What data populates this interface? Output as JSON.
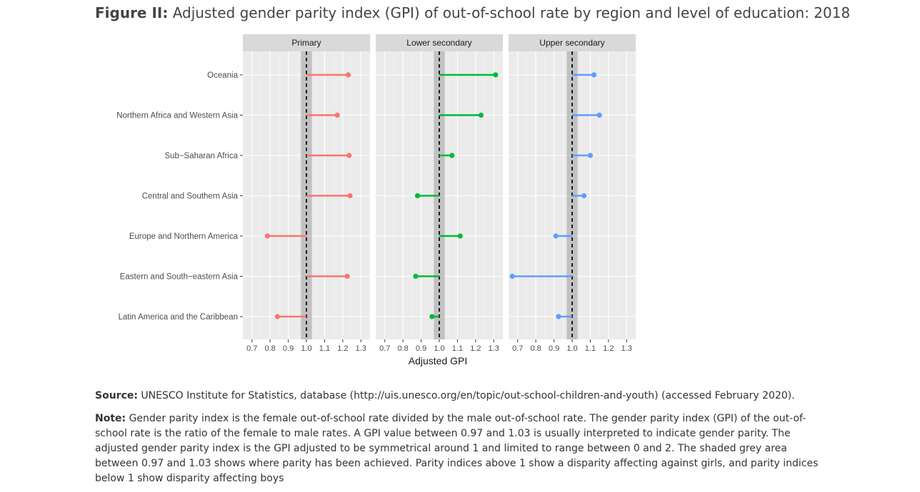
{
  "title": {
    "prefix": "Figure II:",
    "text": "Adjusted gender parity index (GPI) of out-of-school rate by region and level of education: 2018"
  },
  "source": {
    "label": "Source:",
    "text": "UNESCO Institute for Statistics, database (http://uis.unesco.org/en/topic/out-school-children-and-youth) (accessed February 2020)."
  },
  "note": {
    "label": "Note:",
    "text": "Gender parity index is the female out-of-school rate divided by the male out-of-school rate. The gender parity index (GPI) of the out-of-school rate is the ratio of the female to male rates. A GPI value between 0.97 and 1.03 is usually interpreted to indicate gender parity. The adjusted gender parity index is the GPI adjusted to be symmetrical around 1 and limited to range between 0 and 2. The shaded grey area between 0.97 and 1.03 shows where parity has been achieved. Parity indices above 1 show a disparity affecting against girls, and parity indices below 1 show disparity affecting boys"
  },
  "chart_data": {
    "type": "lollipop",
    "xlabel": "Adjusted GPI",
    "xlim": [
      0.65,
      1.35
    ],
    "xticks": [
      "0.7",
      "0.8",
      "0.9",
      "1.0",
      "1.1",
      "1.2",
      "1.3"
    ],
    "reference_line": 1.0,
    "parity_band": [
      0.97,
      1.03
    ],
    "categories": [
      "Oceania",
      "Northern Africa and Western Asia",
      "Sub−Saharan Africa",
      "Central and Southern Asia",
      "Europe and Northern America",
      "Eastern and South−eastern Asia",
      "Latin America and the Caribbean"
    ],
    "panels": [
      {
        "name": "Primary",
        "color": "#f8766d",
        "values": [
          1.23,
          1.17,
          1.235,
          1.24,
          0.785,
          1.225,
          0.84
        ]
      },
      {
        "name": "Lower secondary",
        "color": "#00ba38",
        "values": [
          1.31,
          1.23,
          1.07,
          0.88,
          1.115,
          0.87,
          0.96
        ]
      },
      {
        "name": "Upper secondary",
        "color": "#619cff",
        "values": [
          1.12,
          1.15,
          1.1,
          1.065,
          0.91,
          0.67,
          0.925
        ]
      }
    ]
  }
}
